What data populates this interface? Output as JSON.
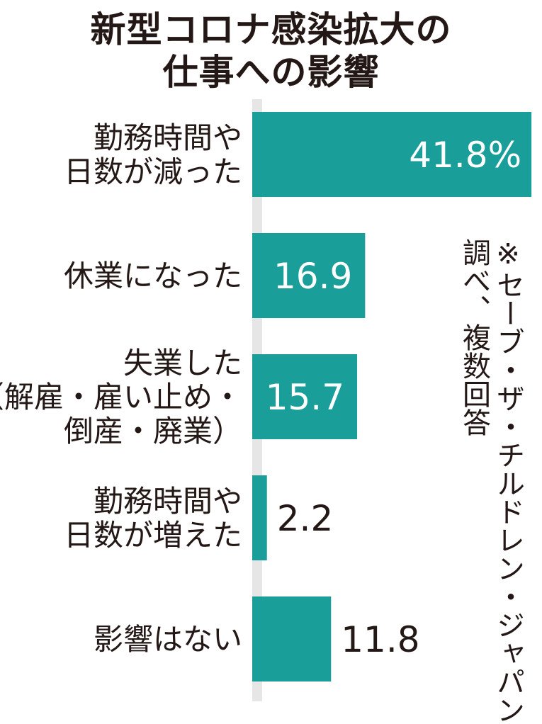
{
  "title": {
    "line1": "新型コロナ感染拡大の",
    "line2": "仕事への影響"
  },
  "chart_data": {
    "type": "bar",
    "orientation": "horizontal",
    "title": "新型コロナ感染拡大の仕事への影響",
    "unit": "%",
    "xlim": [
      0,
      42
    ],
    "categories": [
      [
        "勤務時間や",
        "日数が減った"
      ],
      [
        "休業になった"
      ],
      [
        "失業した",
        "（解雇・雇い止め・",
        "倒産・廃業）"
      ],
      [
        "勤務時間や",
        "日数が増えた"
      ],
      [
        "影響はない"
      ]
    ],
    "values": [
      41.8,
      16.9,
      15.7,
      2.2,
      11.8
    ],
    "value_labels": [
      "41.8%",
      "16.9",
      "15.7",
      "2.2",
      "11.8"
    ],
    "bar_color": "#1a9e9a",
    "axis_color": "#e6e6e6"
  },
  "note": {
    "line1": "※セーブ・ザ・チルドレン・ジャパン",
    "line2": "調べ、複数回答"
  }
}
